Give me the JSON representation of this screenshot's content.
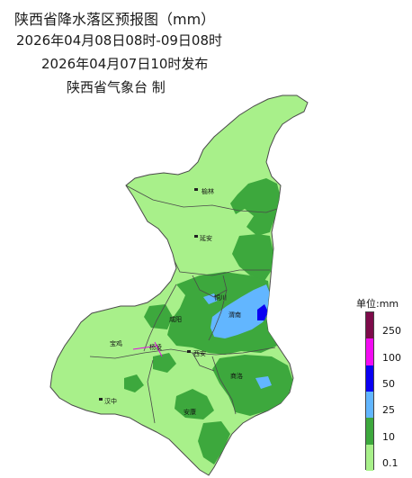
{
  "header": {
    "title": "陕西省降水落区预报图（mm）",
    "period": "2026年04月08日08时-09日08时",
    "issued": "2026年04月07日10时发布",
    "issuer": "陕西省气象台 制"
  },
  "map": {
    "cities": [
      {
        "name": "榆林"
      },
      {
        "name": "延安"
      },
      {
        "name": "铜川"
      },
      {
        "name": "渭南"
      },
      {
        "name": "咸阳"
      },
      {
        "name": "宝鸡"
      },
      {
        "name": "杨凌"
      },
      {
        "name": "西安"
      },
      {
        "name": "商洛"
      },
      {
        "name": "汉中"
      },
      {
        "name": "安康"
      }
    ]
  },
  "legend": {
    "title": "单位:mm",
    "levels": [
      {
        "label": "250",
        "color": "#7d0b4a"
      },
      {
        "label": "100",
        "color": "#f20cf2"
      },
      {
        "label": "50",
        "color": "#0a00f2"
      },
      {
        "label": "25",
        "color": "#62b6ff"
      },
      {
        "label": "10",
        "color": "#3da83d"
      },
      {
        "label": "0.1",
        "color": "#a8f08a"
      }
    ]
  },
  "colors": {
    "light_rain": "#a8f08a",
    "moderate_rain": "#3da83d",
    "heavy_rain": "#62b6ff",
    "rainstorm": "#0a00f2",
    "boundary": "#4a4a4a"
  }
}
